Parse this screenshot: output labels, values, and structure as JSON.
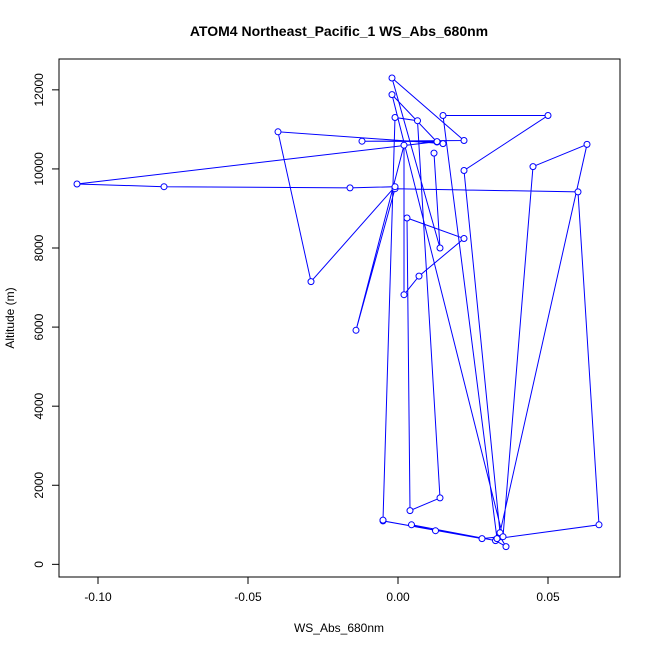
{
  "chart_data": {
    "type": "line",
    "title": "ATOM4 Northeast_Pacific_1 WS_Abs_680nm",
    "xlabel": "WS_Abs_680nm",
    "ylabel": "Altitude (m)",
    "xlim": [
      -0.113,
      0.074
    ],
    "ylim": [
      -320,
      12780
    ],
    "xticks": [
      -0.1,
      -0.05,
      0.0,
      0.05
    ],
    "xtick_labels": [
      "-0.10",
      "-0.05",
      "0.00",
      "0.05"
    ],
    "yticks": [
      0,
      2000,
      4000,
      6000,
      8000,
      10000,
      12000
    ],
    "ytick_labels": [
      "0",
      "2000",
      "4000",
      "6000",
      "8000",
      "10000",
      "12000"
    ],
    "grid": false,
    "legend": "none",
    "series": [
      {
        "color": "#0000ff",
        "marker": "open-circle",
        "x": [
          0.0125,
          0.0045,
          0.0325,
          0.036,
          0.034,
          0.028,
          -0.005,
          -0.005,
          -0.001,
          0.0065,
          0.014,
          0.004,
          0.003,
          0.022,
          0.007,
          0.002,
          0.002,
          -0.014,
          -0.001,
          0.06,
          0.067,
          0.033,
          0.015,
          0.05,
          0.022,
          0.034,
          0.063,
          0.045,
          0.035,
          -0.002,
          0.013,
          0.015,
          -0.04,
          -0.029,
          -0.001,
          -0.016,
          -0.078,
          -0.107,
          0.013,
          -0.012,
          0.022,
          -0.002,
          0.014,
          0.012
        ],
        "y": [
          850,
          1000,
          600,
          450,
          700,
          650,
          1100,
          1120,
          11300,
          11220,
          1680,
          1360,
          8760,
          8240,
          7290,
          6820,
          10600,
          5920,
          9500,
          9420,
          1000,
          650,
          11350,
          11350,
          9960,
          800,
          10620,
          10060,
          700,
          11880,
          10680,
          10640,
          10940,
          7150,
          9550,
          9520,
          9550,
          9620,
          10690,
          10700,
          10720,
          12300,
          8000,
          10400
        ]
      }
    ]
  }
}
